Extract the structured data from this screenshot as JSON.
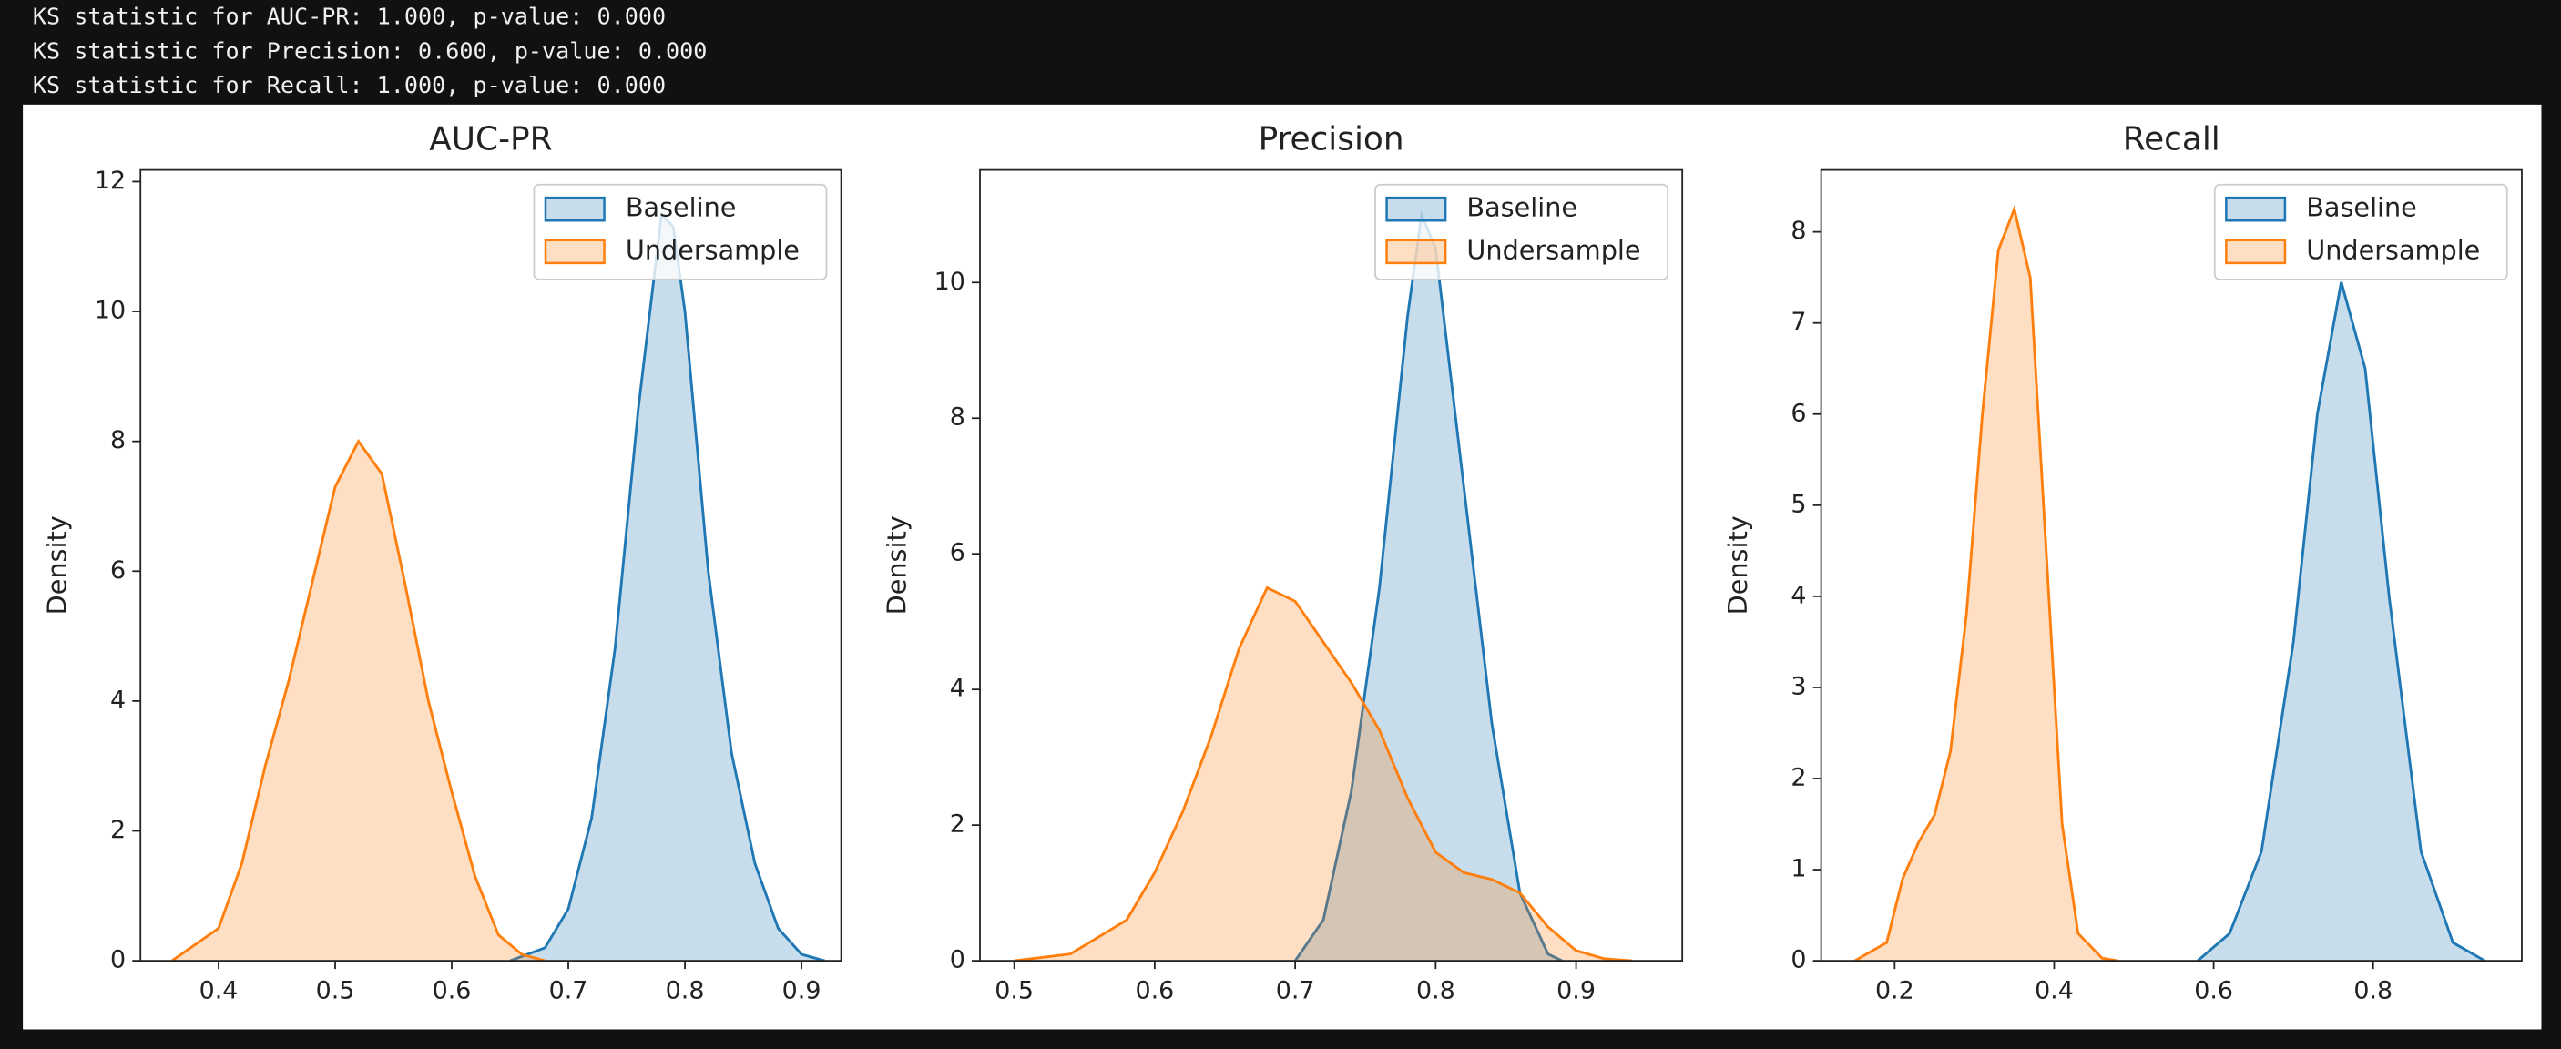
{
  "output_lines": [
    "KS statistic for AUC-PR: 1.000, p-value: 0.000",
    "KS statistic for Precision: 0.600, p-value: 0.000",
    "KS statistic for Recall: 1.000, p-value: 0.000"
  ],
  "chart_data": [
    {
      "type": "kde",
      "title": "AUC-PR",
      "ylabel": "Density",
      "legend": "upper right",
      "xlim": [
        0.333,
        0.934
      ],
      "xticks": [
        0.4,
        0.5,
        0.6,
        0.7,
        0.8,
        0.9
      ],
      "ylim": [
        0,
        12.18
      ],
      "yticks": [
        0,
        2,
        4,
        6,
        8,
        10,
        12
      ],
      "series": [
        {
          "name": "Baseline",
          "color": "#1f77b4",
          "x": [
            0.65,
            0.68,
            0.7,
            0.72,
            0.74,
            0.76,
            0.78,
            0.79,
            0.8,
            0.82,
            0.84,
            0.86,
            0.88,
            0.9,
            0.92
          ],
          "values": [
            0,
            0.2,
            0.8,
            2.2,
            4.8,
            8.5,
            11.5,
            11.3,
            10.0,
            6.0,
            3.2,
            1.5,
            0.5,
            0.1,
            0
          ]
        },
        {
          "name": "Undersample",
          "color": "#ff7f0e",
          "x": [
            0.36,
            0.4,
            0.42,
            0.44,
            0.46,
            0.48,
            0.5,
            0.52,
            0.54,
            0.56,
            0.58,
            0.6,
            0.62,
            0.64,
            0.66,
            0.68
          ],
          "values": [
            0,
            0.5,
            1.5,
            3.0,
            4.3,
            5.8,
            7.3,
            8.0,
            7.5,
            5.8,
            4.0,
            2.6,
            1.3,
            0.4,
            0.1,
            0
          ]
        }
      ]
    },
    {
      "type": "kde",
      "title": "Precision",
      "ylabel": "Density",
      "legend": "upper right",
      "xlim": [
        0.4756,
        0.9756
      ],
      "xticks": [
        0.5,
        0.6,
        0.7,
        0.8,
        0.9
      ],
      "ylim": [
        0,
        11.66
      ],
      "yticks": [
        0,
        2,
        4,
        6,
        8,
        10
      ],
      "series": [
        {
          "name": "Baseline",
          "color": "#1f77b4",
          "x": [
            0.7,
            0.72,
            0.74,
            0.76,
            0.78,
            0.79,
            0.8,
            0.82,
            0.84,
            0.86,
            0.88,
            0.89
          ],
          "values": [
            0,
            0.6,
            2.5,
            5.5,
            9.5,
            11.0,
            10.5,
            7.0,
            3.5,
            1.0,
            0.1,
            0
          ]
        },
        {
          "name": "Undersample",
          "color": "#ff7f0e",
          "x": [
            0.5,
            0.54,
            0.58,
            0.6,
            0.62,
            0.64,
            0.66,
            0.68,
            0.7,
            0.72,
            0.74,
            0.76,
            0.78,
            0.8,
            0.82,
            0.84,
            0.86,
            0.88,
            0.9,
            0.92,
            0.94
          ],
          "values": [
            0,
            0.1,
            0.6,
            1.3,
            2.2,
            3.3,
            4.6,
            5.5,
            5.3,
            4.7,
            4.1,
            3.4,
            2.4,
            1.6,
            1.3,
            1.2,
            1.0,
            0.5,
            0.15,
            0.03,
            0
          ]
        }
      ]
    },
    {
      "type": "kde",
      "title": "Recall",
      "ylabel": "Density",
      "legend": "upper right",
      "xlim": [
        0.1078,
        0.9864
      ],
      "xticks": [
        0.2,
        0.4,
        0.6,
        0.8
      ],
      "ylim": [
        0,
        8.68
      ],
      "yticks": [
        0,
        1,
        2,
        3,
        4,
        5,
        6,
        7,
        8
      ],
      "series": [
        {
          "name": "Baseline",
          "color": "#1f77b4",
          "x": [
            0.58,
            0.62,
            0.66,
            0.7,
            0.73,
            0.76,
            0.79,
            0.82,
            0.86,
            0.9,
            0.94
          ],
          "values": [
            0,
            0.3,
            1.2,
            3.5,
            6.0,
            7.45,
            6.5,
            4.0,
            1.2,
            0.2,
            0
          ]
        },
        {
          "name": "Undersample",
          "color": "#ff7f0e",
          "x": [
            0.15,
            0.19,
            0.21,
            0.23,
            0.25,
            0.27,
            0.29,
            0.31,
            0.33,
            0.35,
            0.37,
            0.39,
            0.41,
            0.43,
            0.46,
            0.48
          ],
          "values": [
            0,
            0.2,
            0.9,
            1.3,
            1.6,
            2.3,
            3.8,
            6.0,
            7.8,
            8.25,
            7.5,
            4.5,
            1.5,
            0.3,
            0.03,
            0
          ]
        }
      ]
    }
  ]
}
